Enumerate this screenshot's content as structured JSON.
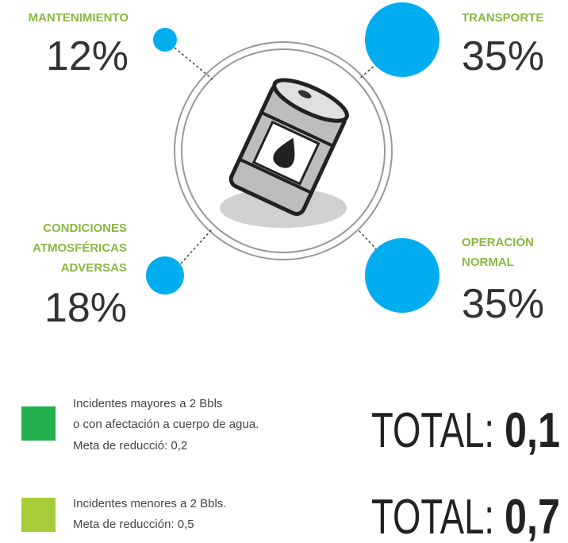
{
  "segments": [
    {
      "label": [
        "MANTENIMIENTO"
      ],
      "value": "12%"
    },
    {
      "label": [
        "TRANSPORTE"
      ],
      "value": "35%"
    },
    {
      "label": [
        "CONDICIONES",
        "ATMOSFÉRICAS",
        "ADVERSAS"
      ],
      "value": "18%"
    },
    {
      "label": [
        "OPERACIÓN",
        "NORMAL"
      ],
      "value": "35%"
    }
  ],
  "legend": [
    {
      "lines": [
        "Incidentes mayores a 2 Bbls",
        "o con afectación a cuerpo de agua.",
        "Meta de reducció: 0,2"
      ],
      "total_label": "TOTAL:",
      "total_value": "0,1"
    },
    {
      "lines": [
        "Incidentes menores a 2 Bbls.",
        "Meta de reducción: 0,5"
      ],
      "total_label": "TOTAL:",
      "total_value": "0,7"
    }
  ]
}
